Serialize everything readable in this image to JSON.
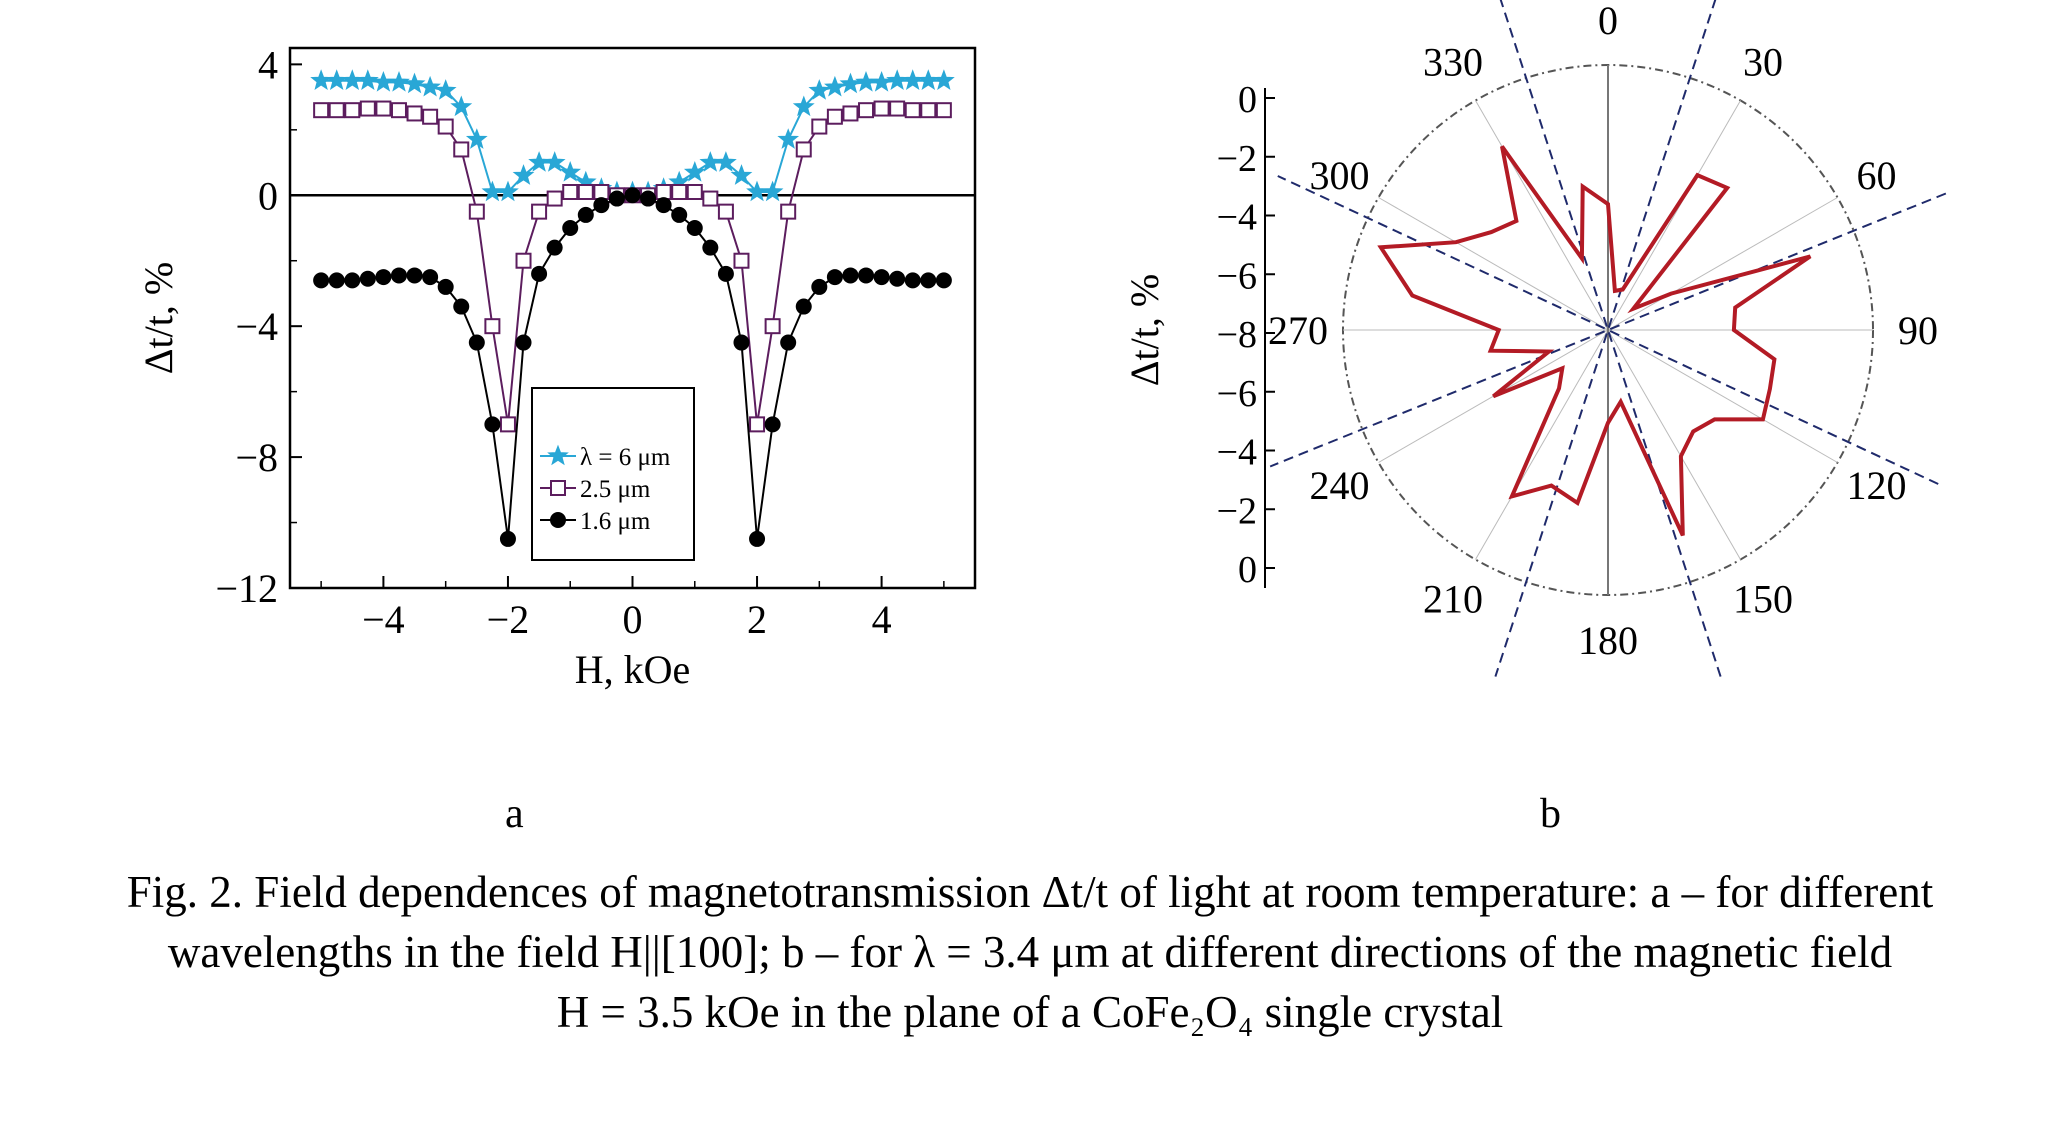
{
  "chart_data": [
    {
      "type": "line",
      "panel": "a",
      "xlabel": "H, kOe",
      "ylabel": "Δt/t, %",
      "xlim": [
        -5.5,
        5.5
      ],
      "ylim": [
        -12,
        4.5
      ],
      "xticks": [
        -4,
        -2,
        0,
        2,
        4
      ],
      "yticks": [
        4,
        0,
        -4,
        -8,
        -12
      ],
      "legend_position": "lower-center",
      "zero_line": true,
      "series": [
        {
          "name": "λ = 6 μm",
          "color": "#29a7d6",
          "marker": "star",
          "x": [
            -5,
            -4.75,
            -4.5,
            -4.25,
            -4,
            -3.75,
            -3.5,
            -3.25,
            -3,
            -2.75,
            -2.5,
            -2.25,
            -2,
            -1.75,
            -1.5,
            -1.25,
            -1,
            -0.75,
            -0.5,
            -0.25,
            0,
            0.25,
            0.5,
            0.75,
            1,
            1.25,
            1.5,
            1.75,
            2,
            2.25,
            2.5,
            2.75,
            3,
            3.25,
            3.5,
            3.75,
            4,
            4.25,
            4.5,
            4.75,
            5
          ],
          "y": [
            3.5,
            3.5,
            3.5,
            3.5,
            3.45,
            3.45,
            3.4,
            3.3,
            3.2,
            2.7,
            1.7,
            0.1,
            0.1,
            0.6,
            1.0,
            1.0,
            0.7,
            0.4,
            0.2,
            0.1,
            0.1,
            0.1,
            0.2,
            0.4,
            0.7,
            1.0,
            1.0,
            0.6,
            0.1,
            0.1,
            1.7,
            2.7,
            3.2,
            3.3,
            3.4,
            3.45,
            3.45,
            3.5,
            3.5,
            3.5,
            3.5
          ]
        },
        {
          "name": "2.5 μm",
          "color": "#5c1d5e",
          "marker": "open-square",
          "x": [
            -5,
            -4.75,
            -4.5,
            -4.25,
            -4,
            -3.75,
            -3.5,
            -3.25,
            -3,
            -2.75,
            -2.5,
            -2.25,
            -2,
            -1.75,
            -1.5,
            -1.25,
            -1,
            -0.75,
            -0.5,
            -0.25,
            0,
            0.25,
            0.5,
            0.75,
            1,
            1.25,
            1.5,
            1.75,
            2,
            2.25,
            2.5,
            2.75,
            3,
            3.25,
            3.5,
            3.75,
            4,
            4.25,
            4.5,
            4.75,
            5
          ],
          "y": [
            2.6,
            2.6,
            2.6,
            2.65,
            2.65,
            2.6,
            2.5,
            2.4,
            2.1,
            1.4,
            -0.5,
            -4.0,
            -7.0,
            -2.0,
            -0.5,
            -0.1,
            0.1,
            0.1,
            0.1,
            0.0,
            0.0,
            0.0,
            0.1,
            0.1,
            0.1,
            -0.1,
            -0.5,
            -2.0,
            -7.0,
            -4.0,
            -0.5,
            1.4,
            2.1,
            2.4,
            2.5,
            2.6,
            2.65,
            2.65,
            2.6,
            2.6,
            2.6
          ]
        },
        {
          "name": "1.6 μm",
          "color": "#000000",
          "marker": "filled-circle",
          "x": [
            -5,
            -4.75,
            -4.5,
            -4.25,
            -4,
            -3.75,
            -3.5,
            -3.25,
            -3,
            -2.75,
            -2.5,
            -2.25,
            -2,
            -1.75,
            -1.5,
            -1.25,
            -1,
            -0.75,
            -0.5,
            -0.25,
            0,
            0.25,
            0.5,
            0.75,
            1,
            1.25,
            1.5,
            1.75,
            2,
            2.25,
            2.5,
            2.75,
            3,
            3.25,
            3.5,
            3.75,
            4,
            4.25,
            4.5,
            4.75,
            5
          ],
          "y": [
            -2.6,
            -2.6,
            -2.6,
            -2.55,
            -2.5,
            -2.45,
            -2.45,
            -2.5,
            -2.8,
            -3.4,
            -4.5,
            -7.0,
            -10.5,
            -4.5,
            -2.4,
            -1.6,
            -1.0,
            -0.6,
            -0.3,
            -0.1,
            0.0,
            -0.1,
            -0.3,
            -0.6,
            -1.0,
            -1.6,
            -2.4,
            -4.5,
            -10.5,
            -7.0,
            -4.5,
            -3.4,
            -2.8,
            -2.5,
            -2.45,
            -2.45,
            -2.5,
            -2.55,
            -2.6,
            -2.6,
            -2.6
          ]
        }
      ]
    },
    {
      "type": "polar",
      "panel": "b",
      "ylabel": "Δt/t, %",
      "radial_axis_ticks": [
        "0",
        "−2",
        "−4",
        "−6",
        "−8",
        "−6",
        "−4",
        "−2",
        "0"
      ],
      "angle_labels": [
        "0",
        "30",
        "60",
        "90",
        "120",
        "150",
        "180",
        "210",
        "240",
        "270",
        "300",
        "330"
      ],
      "r_range": [
        0,
        8
      ],
      "series": [
        {
          "name": "",
          "color": "#b31b25",
          "angle_deg": [
            0,
            10,
            20,
            30,
            40,
            50,
            60,
            70,
            80,
            90,
            100,
            110,
            120,
            130,
            140,
            150,
            160,
            170,
            180,
            190,
            200,
            210,
            220,
            230,
            240,
            250,
            260,
            270,
            280,
            290,
            300,
            310,
            320,
            330,
            340,
            350
          ],
          "r": [
            3.8,
            1.2,
            1.3,
            5.4,
            5.6,
            1.0,
            2.2,
            6.5,
            3.9,
            3.8,
            5.1,
            5.2,
            5.4,
            4.2,
            4.0,
            4.4,
            6.6,
            2.2,
            2.8,
            5.3,
            5.0,
            5.8,
            2.3,
            1.8,
            4.0,
            1.9,
            3.6,
            3.3,
            6.0,
            7.3,
            5.3,
            4.6,
            4.3,
            6.4,
            2.3,
            4.4
          ]
        }
      ],
      "axes_lines_deg": [
        18,
        68,
        115,
        162
      ]
    }
  ],
  "panel_labels": {
    "a": "a",
    "b": "b"
  },
  "caption": {
    "line1": "Fig. 2. Field dependences of magnetotransmission Δt/t of light at room temperature: a – for different",
    "line2": "wavelengths in the field H||[100]; b – for λ = 3.4 μm at different directions of the magnetic field",
    "line3": "H = 3.5 kOe in the plane of a CoFe₂O₄ single crystal"
  }
}
